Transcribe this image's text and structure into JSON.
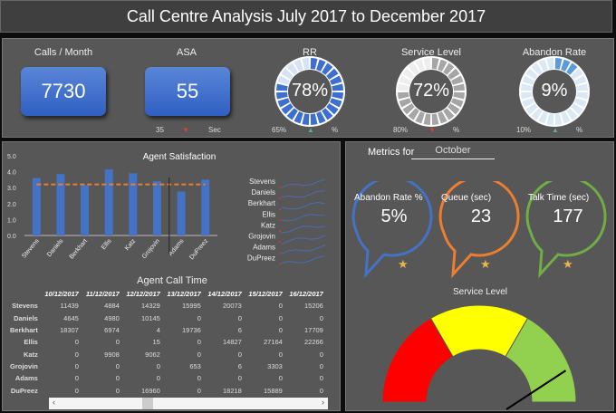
{
  "title": "Call Centre Analysis July 2017 to December 2017",
  "kpis": {
    "calls": {
      "label": "Calls / Month",
      "value": "7730"
    },
    "asa": {
      "label": "ASA",
      "value": "55",
      "target": "35",
      "unit": "Sec",
      "trend": "down"
    },
    "rr": {
      "label": "RR",
      "value": "78%",
      "fill": 78,
      "target": "65%",
      "unit": "%",
      "trend": "up",
      "color": "#3d6fd0",
      "light": "#d6e2f5"
    },
    "service_level": {
      "label": "Service Level",
      "value": "72%",
      "fill": 72,
      "target": "80%",
      "unit": "%",
      "trend": "down",
      "color": "#a6a6a6",
      "light": "#eeeeee"
    },
    "abandon_rate": {
      "label": "Abandon Rate",
      "value": "9%",
      "fill": 9,
      "target": "10%",
      "unit": "%",
      "trend": "up",
      "color": "#5b9bdd",
      "light": "#dbe9f7"
    }
  },
  "chart_data": {
    "type": "bar",
    "title": "Agent Satisfaction",
    "categories": [
      "Stevens",
      "Daniels",
      "Berkhart",
      "Ellis",
      "Katz",
      "Grojovin",
      "Adams",
      "DuPreez"
    ],
    "values": [
      3.6,
      3.85,
      3.15,
      4.15,
      3.9,
      3.4,
      2.75,
      3.5
    ],
    "target": 3.2,
    "ylim": [
      0,
      5
    ],
    "yticks": [
      "0.0",
      "1.0",
      "2.0",
      "3.0",
      "4.0",
      "5.0"
    ],
    "bar_color": "#4472c4",
    "target_color": "#ed7d31"
  },
  "sparklines": {
    "labels": [
      "Stevens",
      "Daniels",
      "Berkhart",
      "Ellis",
      "Katz",
      "Grojovin",
      "Adams",
      "DuPreez"
    ]
  },
  "call_time": {
    "title": "Agent Call Time",
    "dates": [
      "10/12/2017",
      "11/12/2017",
      "12/12/2017",
      "13/12/2017",
      "14/12/2017",
      "15/12/2017",
      "16/12/2017"
    ],
    "rows": [
      {
        "name": "Stevens",
        "v": [
          "11439",
          "4884",
          "14329",
          "15995",
          "20073",
          "0",
          "15206"
        ]
      },
      {
        "name": "Daniels",
        "v": [
          "4645",
          "4980",
          "10145",
          "0",
          "0",
          "0",
          "0"
        ]
      },
      {
        "name": "Berkhart",
        "v": [
          "18307",
          "6974",
          "4",
          "19736",
          "6",
          "0",
          "17709"
        ]
      },
      {
        "name": "Ellis",
        "v": [
          "0",
          "0",
          "15",
          "0",
          "14827",
          "27164",
          "22266"
        ]
      },
      {
        "name": "Katz",
        "v": [
          "0",
          "9908",
          "9062",
          "0",
          "0",
          "0",
          "0"
        ]
      },
      {
        "name": "Grojovin",
        "v": [
          "0",
          "0",
          "0",
          "653",
          "6",
          "3303",
          "0"
        ]
      },
      {
        "name": "Adams",
        "v": [
          "0",
          "0",
          "0",
          "0",
          "0",
          "0",
          "0"
        ]
      },
      {
        "name": "DuPreez",
        "v": [
          "0",
          "0",
          "16960",
          "0",
          "18218",
          "15889",
          "0"
        ]
      }
    ]
  },
  "metrics": {
    "label": "Metrics for",
    "month": "October",
    "bubbles": [
      {
        "title": "Abandon Rate %",
        "value": "5%",
        "color": "#4472c4"
      },
      {
        "title": "Queue  (sec)",
        "value": "23",
        "color": "#ed7d31"
      },
      {
        "title": "Talk Time (sec)",
        "value": "177",
        "color": "#70ad47"
      }
    ],
    "gauge": {
      "title": "Service Level",
      "value": 72,
      "colors": [
        "#ff0000",
        "#ffff00",
        "#92d050"
      ]
    }
  }
}
